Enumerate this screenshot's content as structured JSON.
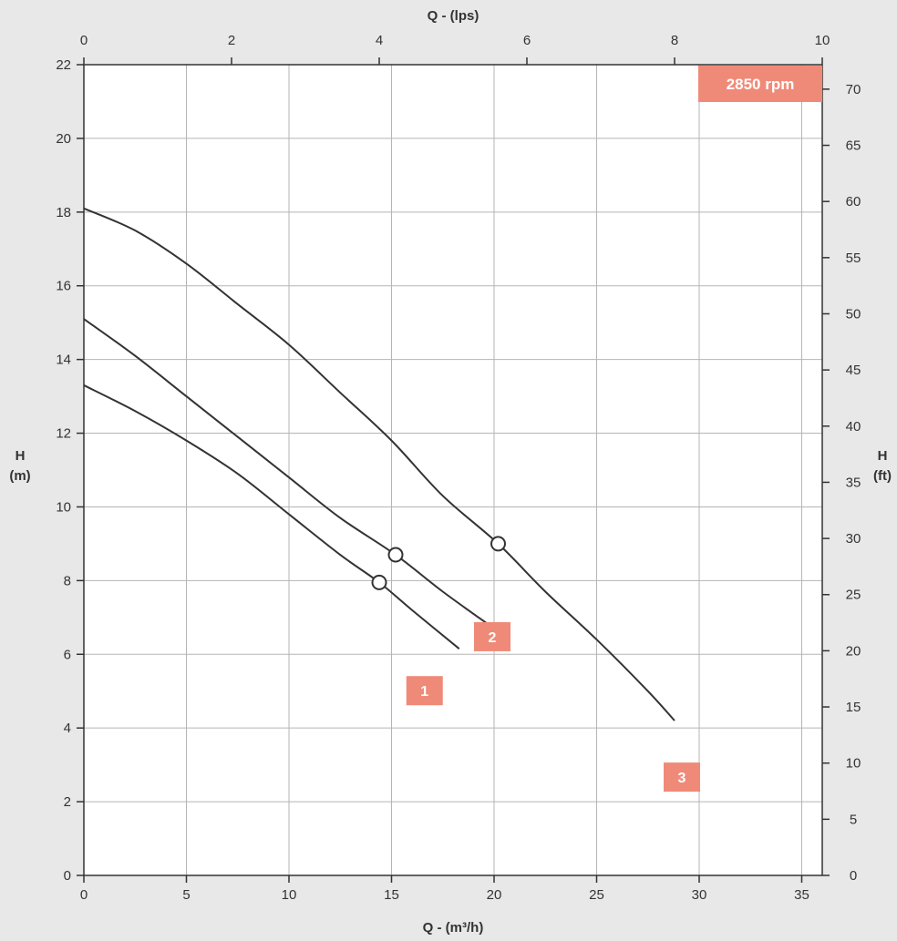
{
  "chart_data": {
    "type": "line",
    "title": "",
    "xlabel_bottom": "Q - (m³/h)",
    "xlabel_top": "Q - (lps)",
    "ylabel_left": [
      "H",
      "(m)"
    ],
    "ylabel_right": [
      "H",
      "(ft)"
    ],
    "xlim_bottom": [
      0,
      36
    ],
    "xlim_top": [
      0,
      10
    ],
    "ylim_left": [
      0,
      22
    ],
    "ylim_right": [
      0,
      72.18
    ],
    "xticks_bottom": [
      0,
      5,
      10,
      15,
      20,
      25,
      30,
      35
    ],
    "xticks_top": [
      0,
      2,
      4,
      6,
      8,
      10
    ],
    "yticks_left": [
      0,
      2,
      4,
      6,
      8,
      10,
      12,
      14,
      16,
      18,
      20,
      22
    ],
    "yticks_right": [
      0,
      5,
      10,
      15,
      20,
      25,
      30,
      35,
      40,
      45,
      50,
      55,
      60,
      65,
      70
    ],
    "grid": true,
    "speed_label": "2850 rpm",
    "series": [
      {
        "name": "1",
        "x": [
          0,
          2.5,
          5,
          7.5,
          10,
          12.5,
          14.4,
          16,
          18.3
        ],
        "y": [
          13.3,
          12.6,
          11.8,
          10.9,
          9.8,
          8.7,
          7.95,
          7.2,
          6.15
        ],
        "bep": {
          "x": 14.4,
          "y": 7.95
        }
      },
      {
        "name": "2",
        "x": [
          0,
          2.5,
          5,
          7.5,
          10,
          12.5,
          15.2,
          17.5,
          20
        ],
        "y": [
          15.1,
          14.1,
          13.0,
          11.9,
          10.8,
          9.7,
          8.7,
          7.7,
          6.7
        ],
        "bep": {
          "x": 15.2,
          "y": 8.7
        }
      },
      {
        "name": "3",
        "x": [
          0,
          2.5,
          5,
          7.5,
          10,
          12.5,
          15,
          17.5,
          20.2,
          22.5,
          25,
          27.5,
          28.8
        ],
        "y": [
          18.1,
          17.5,
          16.6,
          15.5,
          14.4,
          13.1,
          11.8,
          10.3,
          9.0,
          7.7,
          6.4,
          5.0,
          4.2
        ],
        "bep": {
          "x": 20.2,
          "y": 9.0
        }
      }
    ]
  },
  "colors": {
    "background": "#e8e8e8",
    "plot_background": "#ffffff",
    "grid": "#b5b5b5",
    "curve": "#333333",
    "badge": "#f08a78",
    "text": "#333333"
  }
}
